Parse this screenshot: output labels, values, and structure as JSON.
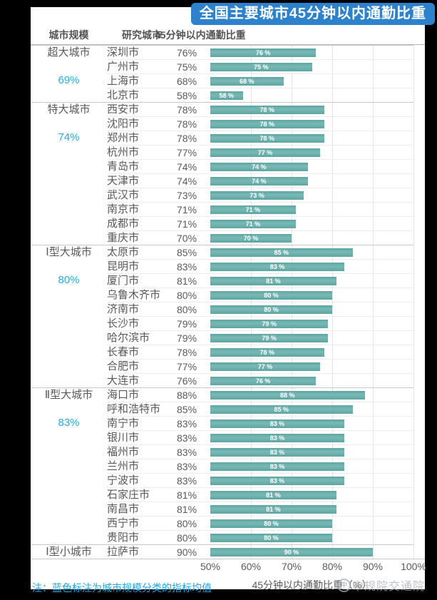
{
  "title": "全国主要城市45分钟以内通勤比重",
  "columns": {
    "scale": "城市规模",
    "city": "研究城市",
    "value": "45分钟以内通勤比重"
  },
  "note": {
    "text": "注：蓝色标注为城市规模分类的指标均值"
  },
  "watermark": {
    "logo": "caupd-circle-logo",
    "text": "中规院交通院"
  },
  "colors": {
    "title_bg": "#2e81cb",
    "bar": "#68aeaa",
    "mean_text": "#29a9e3",
    "note_text": "#1ea6e9",
    "body_text": "#595959",
    "frame": "#000000"
  },
  "chart_data": {
    "type": "bar",
    "title": "全国主要城市45分钟以内通勤比重",
    "xlabel": "45分钟以内通勤比重（%）",
    "ylabel": "",
    "xlim": [
      50,
      100
    ],
    "x_ticks": [
      "50%",
      "60%",
      "70%",
      "80%",
      "90%",
      "100%"
    ],
    "grid": true,
    "bar_label_suffix": " %",
    "groups": [
      {
        "scale": "超大城市",
        "mean": 69,
        "mean_label": "69%",
        "cities": [
          {
            "name": "深圳市",
            "value": 76
          },
          {
            "name": "广州市",
            "value": 75
          },
          {
            "name": "上海市",
            "value": 68
          },
          {
            "name": "北京市",
            "value": 58
          }
        ]
      },
      {
        "scale": "特大城市",
        "mean": 74,
        "mean_label": "74%",
        "cities": [
          {
            "name": "西安市",
            "value": 78
          },
          {
            "name": "沈阳市",
            "value": 78
          },
          {
            "name": "郑州市",
            "value": 78
          },
          {
            "name": "杭州市",
            "value": 77
          },
          {
            "name": "青岛市",
            "value": 74
          },
          {
            "name": "天津市",
            "value": 74
          },
          {
            "name": "武汉市",
            "value": 73
          },
          {
            "name": "南京市",
            "value": 71
          },
          {
            "name": "成都市",
            "value": 71
          },
          {
            "name": "重庆市",
            "value": 70
          }
        ]
      },
      {
        "scale": "Ⅰ型大城市",
        "mean": 80,
        "mean_label": "80%",
        "cities": [
          {
            "name": "太原市",
            "value": 85
          },
          {
            "name": "昆明市",
            "value": 83
          },
          {
            "name": "厦门市",
            "value": 81
          },
          {
            "name": "乌鲁木齐市",
            "value": 80
          },
          {
            "name": "济南市",
            "value": 80
          },
          {
            "name": "长沙市",
            "value": 79
          },
          {
            "name": "哈尔滨市",
            "value": 79
          },
          {
            "name": "长春市",
            "value": 78
          },
          {
            "name": "合肥市",
            "value": 77
          },
          {
            "name": "大连市",
            "value": 76
          }
        ]
      },
      {
        "scale": "Ⅱ型大城市",
        "mean": 83,
        "mean_label": "83%",
        "cities": [
          {
            "name": "海口市",
            "value": 88
          },
          {
            "name": "呼和浩特市",
            "value": 85
          },
          {
            "name": "南宁市",
            "value": 83
          },
          {
            "name": "银川市",
            "value": 83
          },
          {
            "name": "福州市",
            "value": 83
          },
          {
            "name": "兰州市",
            "value": 83
          },
          {
            "name": "宁波市",
            "value": 83
          },
          {
            "name": "石家庄市",
            "value": 81
          },
          {
            "name": "南昌市",
            "value": 81
          },
          {
            "name": "西宁市",
            "value": 80
          },
          {
            "name": "贵阳市",
            "value": 80
          }
        ]
      },
      {
        "scale": "Ⅰ型小城市",
        "mean": null,
        "mean_label": "",
        "cities": [
          {
            "name": "拉萨市",
            "value": 90
          }
        ]
      }
    ]
  }
}
